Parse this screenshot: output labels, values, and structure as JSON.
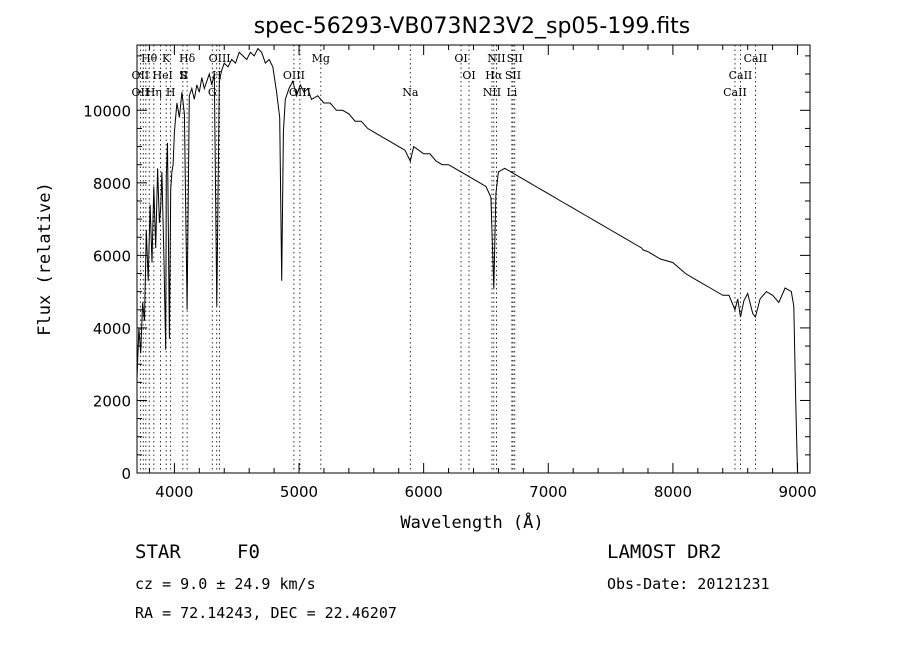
{
  "chart_data": {
    "type": "line",
    "title": "spec-56293-VB073N23V2_sp05-199.fits",
    "xlabel": "Wavelength (Å)",
    "ylabel": "Flux (relative)",
    "xlim": [
      3700,
      9100
    ],
    "ylim": [
      0,
      11800
    ],
    "xticks": [
      "4000",
      "5000",
      "6000",
      "7000",
      "8000",
      "9000"
    ],
    "xtick_values": [
      4000,
      5000,
      6000,
      7000,
      8000,
      9000
    ],
    "yticks": [
      "0",
      "2000",
      "4000",
      "6000",
      "8000",
      "10000"
    ],
    "ytick_values": [
      0,
      2000,
      4000,
      6000,
      8000,
      10000
    ],
    "series": [
      {
        "x": [
          3700,
          3715,
          3730,
          3745,
          3760,
          3775,
          3790,
          3805,
          3820,
          3835,
          3850,
          3865,
          3880,
          3890,
          3900,
          3915,
          3930,
          3935,
          3945,
          3960,
          3970,
          3980,
          3990,
          4000,
          4020,
          4040,
          4060,
          4080,
          4102,
          4120,
          4140,
          4160,
          4180,
          4200,
          4220,
          4240,
          4260,
          4280,
          4300,
          4320,
          4340,
          4360,
          4380,
          4400,
          4430,
          4460,
          4490,
          4520,
          4550,
          4580,
          4610,
          4640,
          4670,
          4700,
          4730,
          4760,
          4790,
          4820,
          4845,
          4861,
          4875,
          4890,
          4920,
          4950,
          4980,
          5010,
          5040,
          5070,
          5100,
          5150,
          5200,
          5250,
          5300,
          5350,
          5400,
          5450,
          5500,
          5550,
          5600,
          5650,
          5700,
          5750,
          5800,
          5850,
          5893,
          5920,
          5960,
          6000,
          6050,
          6100,
          6150,
          6200,
          6250,
          6300,
          6350,
          6400,
          6450,
          6500,
          6540,
          6563,
          6580,
          6600,
          6650,
          6700,
          6750,
          6800,
          6850,
          6900,
          6950,
          7000,
          7100,
          7200,
          7300,
          7400,
          7500,
          7600,
          7700,
          7750,
          7760,
          7800,
          7900,
          8000,
          8100,
          8200,
          8300,
          8400,
          8450,
          8498,
          8520,
          8542,
          8570,
          8600,
          8640,
          8662,
          8700,
          8750,
          8800,
          8850,
          8900,
          8950,
          8970,
          8985,
          9000
        ],
        "y": [
          2600,
          4000,
          3300,
          4700,
          4200,
          6700,
          5300,
          7400,
          5800,
          7900,
          6200,
          8400,
          6900,
          7300,
          8300,
          6100,
          3400,
          8200,
          9100,
          3700,
          7800,
          8300,
          8500,
          9400,
          10200,
          9800,
          10500,
          9900,
          4500,
          10400,
          10600,
          10300,
          10700,
          10500,
          10900,
          10600,
          10800,
          11000,
          10700,
          11000,
          4600,
          10800,
          11100,
          11300,
          11200,
          11400,
          11300,
          11600,
          11500,
          11400,
          11600,
          11500,
          11700,
          11600,
          11300,
          11400,
          11200,
          10500,
          9800,
          5300,
          9400,
          10300,
          10600,
          10800,
          10400,
          10700,
          10500,
          10600,
          10300,
          10400,
          10200,
          10200,
          10000,
          10000,
          9900,
          9700,
          9700,
          9500,
          9400,
          9300,
          9200,
          9100,
          9000,
          8900,
          8600,
          9000,
          8900,
          8800,
          8800,
          8600,
          8500,
          8500,
          8400,
          8300,
          8200,
          8100,
          8000,
          7900,
          7600,
          5100,
          7700,
          8300,
          8400,
          8300,
          8200,
          8100,
          8000,
          7900,
          7800,
          7700,
          7500,
          7300,
          7100,
          6900,
          6700,
          6500,
          6300,
          6200,
          6150,
          6100,
          5900,
          5800,
          5500,
          5300,
          5100,
          4900,
          4900,
          4500,
          4800,
          4300,
          4750,
          4950,
          4400,
          4300,
          4800,
          5000,
          4900,
          4700,
          5100,
          5000,
          4600,
          2000,
          0
        ]
      }
    ],
    "line_markers": [
      {
        "label": "Hθ",
        "wave": 3798,
        "row": 0
      },
      {
        "label": "K",
        "wave": 3934,
        "row": 0
      },
      {
        "label": "Hδ",
        "wave": 4102,
        "row": 0
      },
      {
        "label": "OIII",
        "wave": 4363,
        "row": 0
      },
      {
        "label": "Mg",
        "wave": 5175,
        "row": 0
      },
      {
        "label": "OI",
        "wave": 6300,
        "row": 0
      },
      {
        "label": "NII",
        "wave": 6584,
        "row": 0
      },
      {
        "label": "SII",
        "wave": 6731,
        "row": 0
      },
      {
        "label": "CaII",
        "wave": 8662,
        "row": 0
      },
      {
        "label": "OII",
        "wave": 3727,
        "row": 1
      },
      {
        "label": "He",
        "wave": 3889,
        "row": 1
      },
      {
        "label": "I",
        "wave": 3970,
        "row": 1
      },
      {
        "label": "S",
        "wave": 4068,
        "row": 1
      },
      {
        "label": "II",
        "wave": 4076,
        "row": 1
      },
      {
        "label": "H",
        "wave": 4340,
        "row": 1
      },
      {
        "label": "OIII",
        "wave": 4959,
        "row": 1
      },
      {
        "label": "OI",
        "wave": 6364,
        "row": 1
      },
      {
        "label": "Hα",
        "wave": 6563,
        "row": 1
      },
      {
        "label": "SII",
        "wave": 6717,
        "row": 1
      },
      {
        "label": "CaII",
        "wave": 8542,
        "row": 1
      },
      {
        "label": "OII",
        "wave": 3727,
        "row": 2
      },
      {
        "label": "Hη",
        "wave": 3835,
        "row": 2
      },
      {
        "label": "H",
        "wave": 3970,
        "row": 2
      },
      {
        "label": "G",
        "wave": 4304,
        "row": 2
      },
      {
        "label": "OIII",
        "wave": 5007,
        "row": 2
      },
      {
        "label": "Na",
        "wave": 5893,
        "row": 2
      },
      {
        "label": "NII",
        "wave": 6548,
        "row": 2
      },
      {
        "label": "Li",
        "wave": 6708,
        "row": 2
      },
      {
        "label": "CaII",
        "wave": 8498,
        "row": 2
      }
    ],
    "marker_lines": [
      3727,
      3750,
      3771,
      3798,
      3835,
      3889,
      3934,
      3970,
      4068,
      4102,
      4304,
      4340,
      4363,
      4959,
      5007,
      5175,
      5893,
      6300,
      6364,
      6548,
      6563,
      6584,
      6708,
      6717,
      6731,
      8498,
      8542,
      8662
    ]
  },
  "info": {
    "object_class": "STAR",
    "subclass": "F0",
    "survey": "LAMOST DR2",
    "redshift": "cz =  9.0 ± 24.9 km/s",
    "obs_date": "Obs-Date: 20121231",
    "coords": "RA =  72.14243, DEC =  22.46207"
  }
}
